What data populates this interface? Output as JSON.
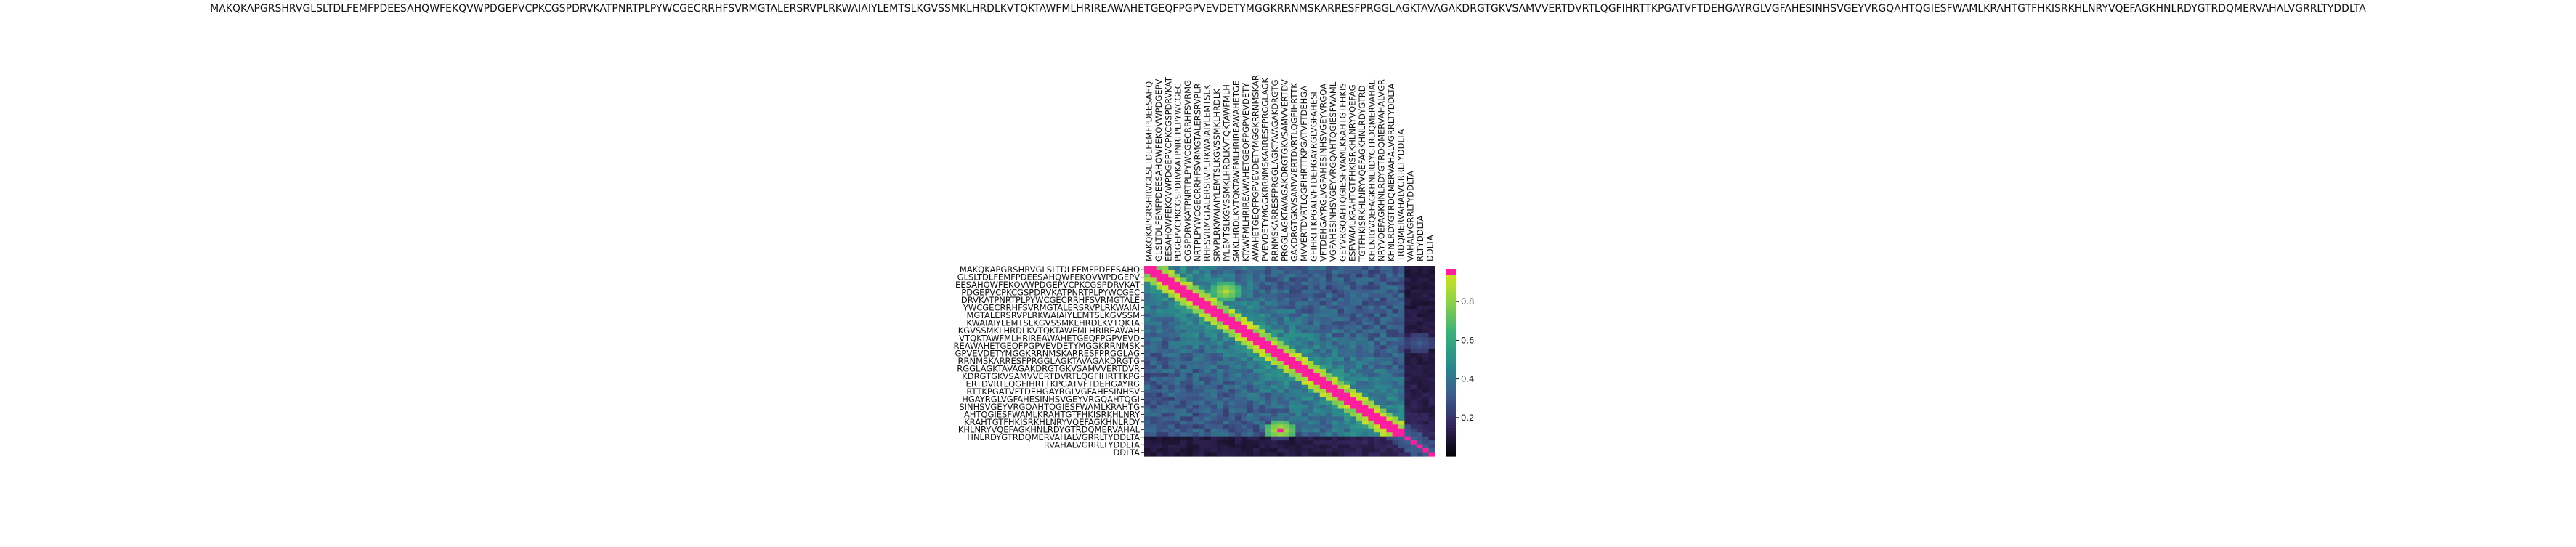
{
  "chart_data": {
    "type": "heatmap",
    "title": "MAKQKAPGRSHRVGLSLTDLFEMFPDEESAHQWFEKQVWPDGEPVCPKCGSPDRVKATPNRTPLPYWCGECRRHFSVRMGTALERSRVPLRKWAIAIYLEMTSLKGVSSMKLHRDLKVTQKTAWFMLHRIREAWAHETGEQFPGPVEVDETYMGGKRRNMSKARRESFPRGGLAGKTAVAGAKDRGTGKVSAMVVERTDVRTLQGFIHRTTKPGATVFTDEHGAYRGLVGFAHESINHSVGEYVRGQAHTQGIESFWAMLKRAHTGTFHKISRKHLNRYVQEFAGKHNLRDYGTRDQMERVAHALVGRRLTYDDLTA",
    "row_labels": [
      "MAKQKAPGRSHRVGLSLTDLFEMFPDEESAHQ",
      "GLSLTDLFEMFPDEESAHQWFEKQVWPDGEPV",
      "EESAHQWFEKQVWPDGEPVCPKCGSPDRVKAT",
      "PDGEPVCPKCGSPDRVKATPNRTPLPYWCGEC",
      "DRVKATPNRTPLPYWCGECRRHFSVRMGTALE",
      "YWCGECRRHFSVRMGTALERSRVPLRKWAIAI",
      "MGTALERSRVPLRKWAIAIYLEMTSLKGVSSM",
      "KWAIAIYLEMTSLKGVSSMKLHRDLKVTQKTA",
      "KGVSSMKLHRDLKVTQKTAWFMLHRIREAWAH",
      "VTQKTAWFMLHRIREAWAHETGEQFPGPVEVD",
      "REAWAHETGEQFPGPVEVDETYMGGKRRNMSK",
      "GPVEVDETYMGGKRRNMSKARRESFPRGGLAG",
      "RRNMSKARRESFPRGGLAGKTAVAGAKDRGTG",
      "RGGLAGKTAVAGAKDRGTGKVSAMVVERTDVR",
      "KDRGTGKVSAMVVERTDVRTLQGFIHRTTKPG",
      "ERTDVRTLQGFIHRTTKPGATVFTDEHGAYRG",
      "RTTKPGATVFTDEHGAYRGLVGFAHESINHSV",
      "HGAYRGLVGFAHESINHSVGEYVRGQAHTQGI",
      "SINHSVGEYVRGQAHTQGIESFWAMLKRAHTG",
      "AHTQGIESFWAMLKRAHTGTFHKISRKHLNRY",
      "KRAHTGTFHKISRKHLNRYVQEFAGKHNLRDY",
      "KHLNRYVQEFAGKHNLRDYGTRDQMERVAHAL",
      "HNLRDYGTRDQMERVAHALVGRRLTYDDLTA",
      "RVAHALVGRRLTYDDLTA",
      "DDLTA"
    ],
    "col_labels": [
      "MAKQKAPGRSHRVGLSLTDLFEMFPDEESAHQ",
      "GLSLTDLFEMFPDEESAHQWFEKQVWPDGEPV",
      "EESAHQWFEKQVWPDGEPVCPKCGSPDRVKAT",
      "PDGEPVCPKCGSPDRVKATPNRTPLPYWCGEC",
      "CGSPDRVKATPNRTPLPYWCGECRRHFSVRMG",
      "NRTPLPYWCGECRRHFSVRMGTALERSRVPLR",
      "RHFSVRMGTALERSRVPLRKWAIAIYLEMTSLK",
      "SRVPLRKWAIAIYLEMTSLKGVSSMKLHRDLK",
      "IYLEMTSLKGVSSMKLHRDLKVTQKTAWFMLH",
      "SMKLHRDLKVTQKTAWFMLHRIREAWAHETGE",
      "KTAWFMLHRIREAWAHETGEQFPGPVEVDETY",
      "AWAHETGEQFPGPVEVDETYMGGKRRNMSKAR",
      "PVEVDETYMGGKRRNMSKARRESFPRGGLAGK",
      "RRNMSKARRESFPRGGLAGKTAVAGAKDRGTG",
      "PRGGLAGKTAVAGAKDRGTGKVSAMVVERTDV",
      "GAKDRGTGKVSAMVVERTDVRTLQGFIHRTTK",
      "MVVERTDVRTLQGFIHRTTKPGATVFTDEHGA",
      "GFIHRTTKPGATVFTDEHGAYRGLVGFAHESI",
      "VFTDEHGAYRGLVGFAHESINHSVGEYVRGQA",
      "VGFAHESINHSVGEYVRGQAHTQGIESFWAML",
      "GEYVRGQAHTQGIESFWAMLKRAHTGTFHKIS",
      "ESFWAMLKRAHTGTFHKISRKHLNRYVQEFAG",
      "TGTFHKISRKHLNRYVQEFAGKHNLRDYGTRD",
      "KHLNRYVQEFAGKHNLRDYGTRDQMERVAHAL",
      "NRYVQEFAGKHNLRDYGTRDQMERVAHALVGR",
      "KHNLRDYGTRDQMERVAHALVGRRLTYDDLTA",
      "TRDQMERVAHALVGRRLTYDDLTA",
      "VAHALVGRRLTYDDLTA",
      "RLTYDDLTA",
      "DDLTA"
    ],
    "colorbar": {
      "ticks": [
        0.2,
        0.4,
        0.6,
        0.8
      ],
      "range": [
        0.0,
        0.97
      ],
      "colors": [
        "#000000",
        "#33245a",
        "#3d5a8c",
        "#2a8a8c",
        "#3bb07a",
        "#8fd14a",
        "#d8e21c",
        "#ff1f9e"
      ]
    },
    "n_rows": 48,
    "n_cols": 48,
    "diagonal_value": 0.97,
    "hotspots": [
      {
        "row": 6,
        "col": 13,
        "value": 0.9
      },
      {
        "row": 19,
        "col": 45,
        "value": 0.95
      },
      {
        "row": 41,
        "col": 22,
        "value": 0.95
      }
    ]
  }
}
